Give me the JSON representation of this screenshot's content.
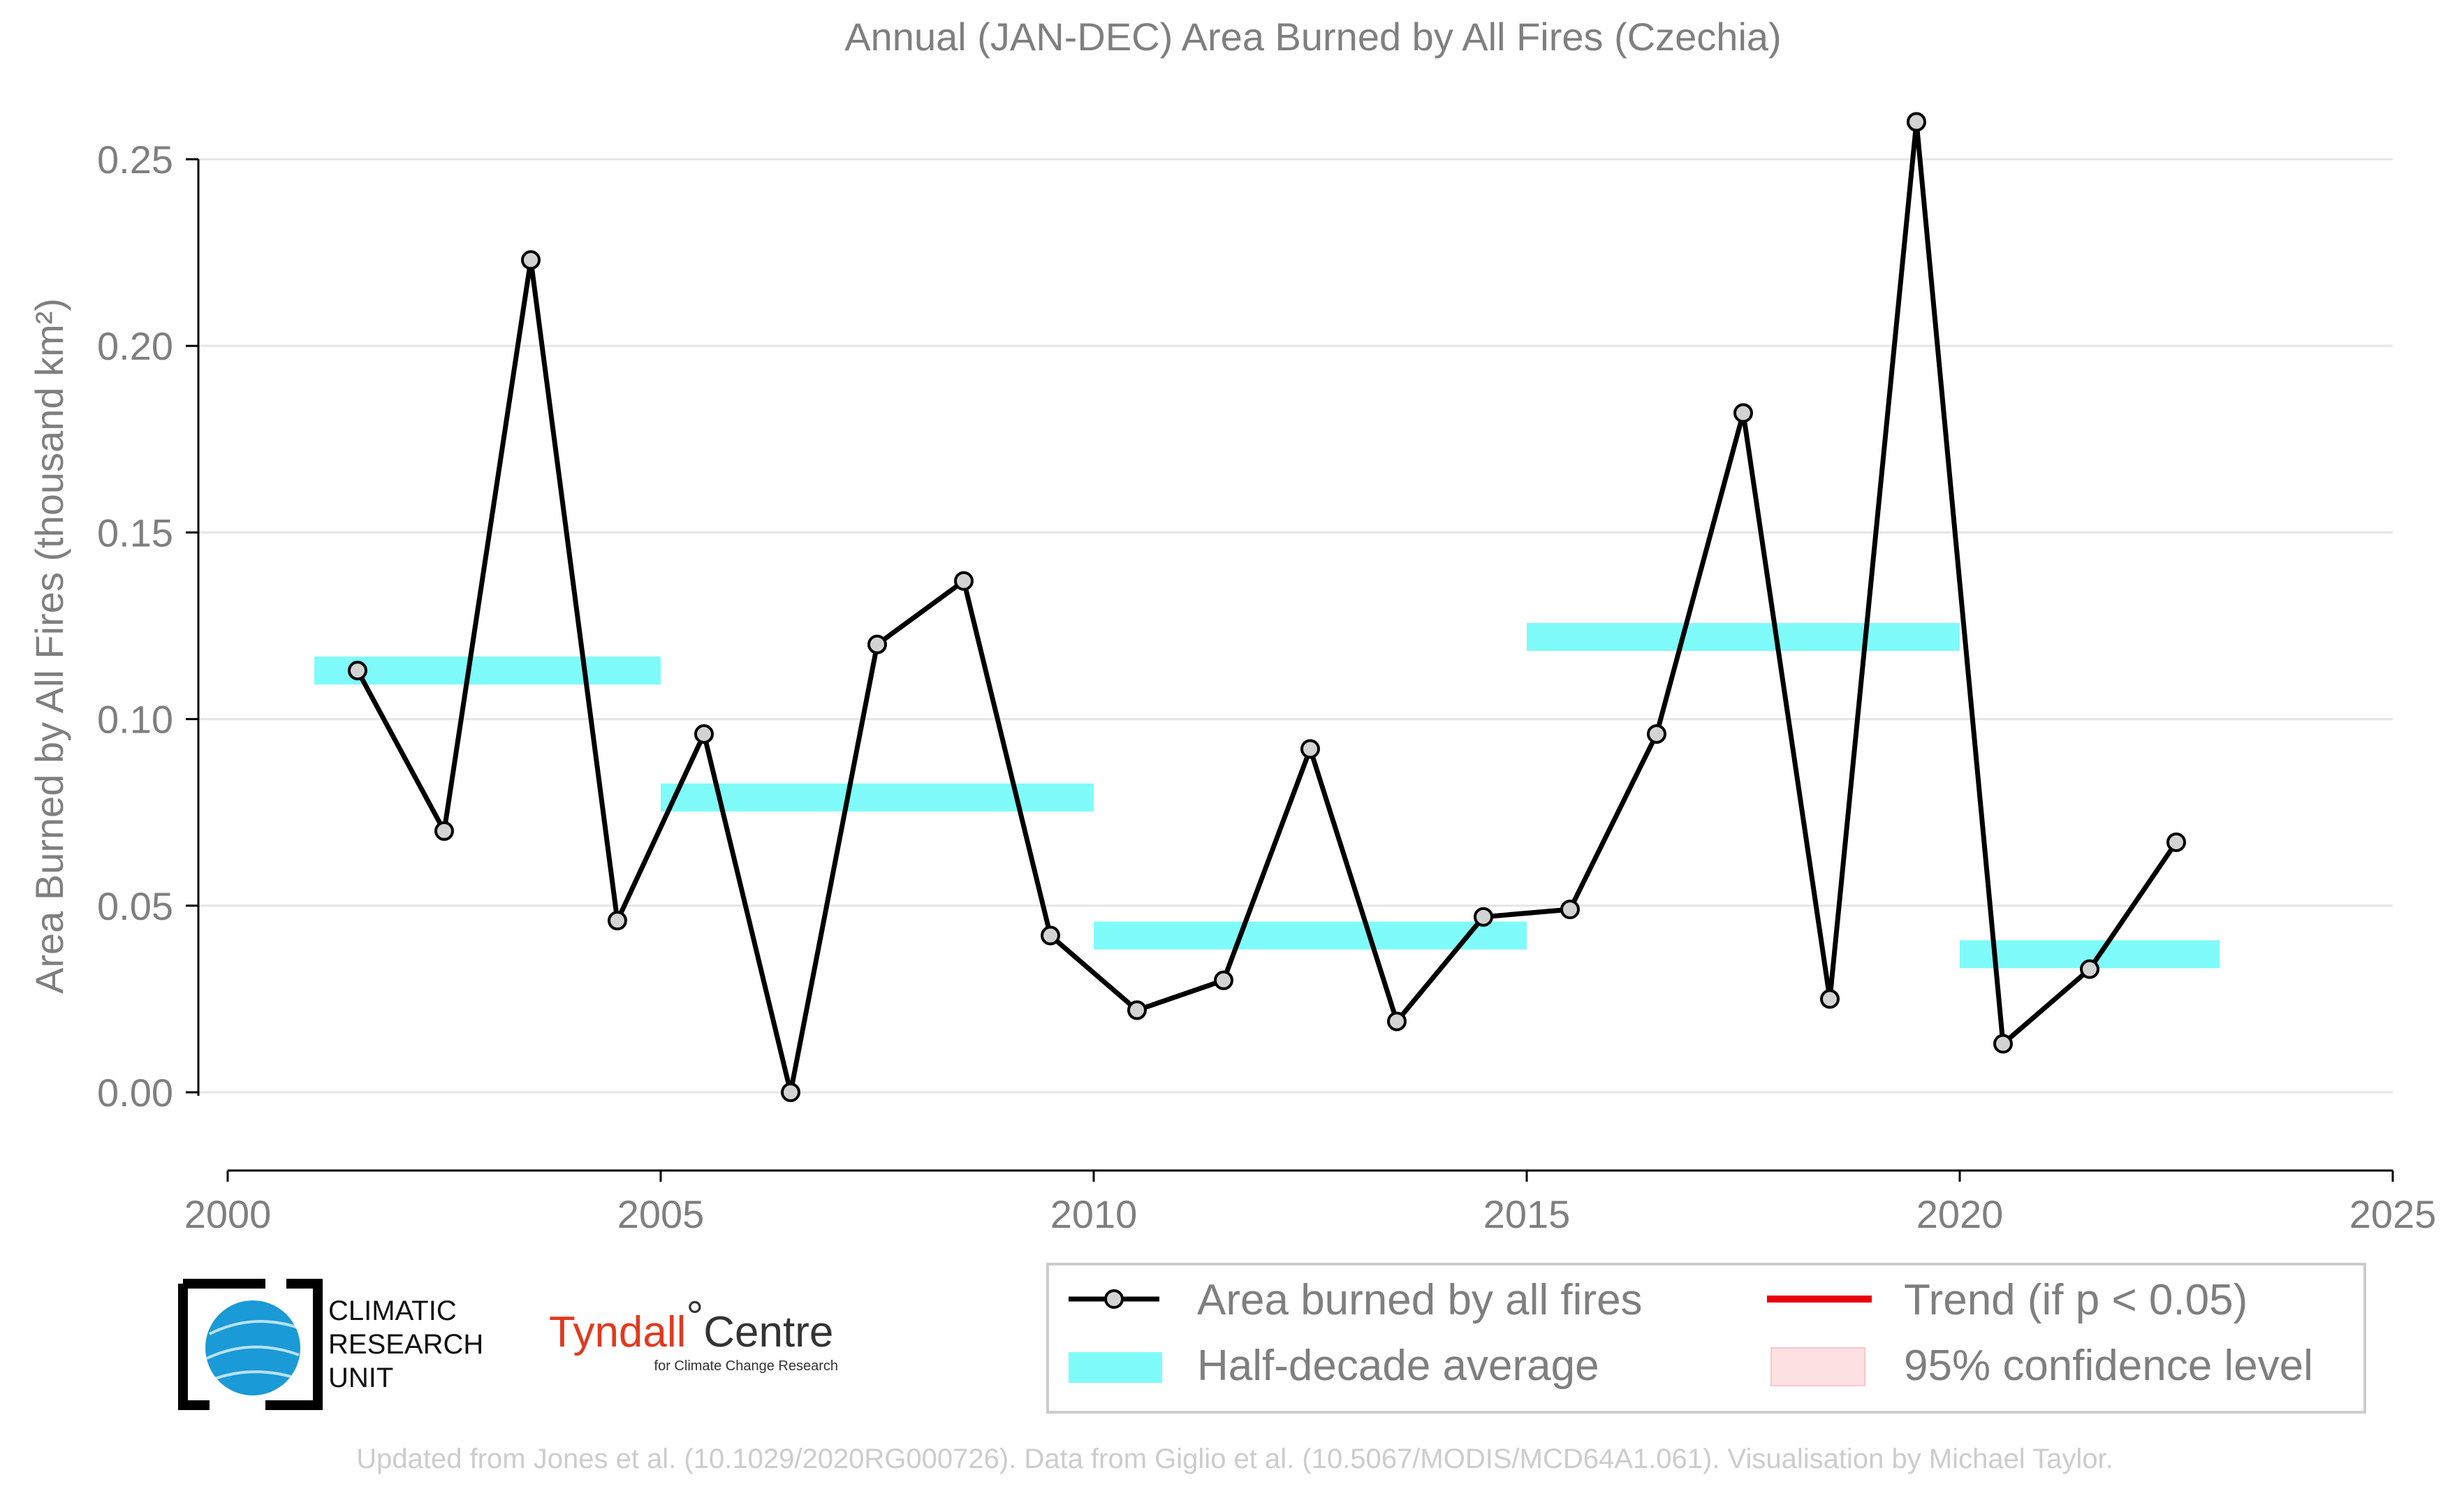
{
  "chart_data": {
    "type": "line",
    "title": "Annual (JAN-DEC) Area Burned by All Fires (Czechia)",
    "ylabel": "Area Burned by All Fires (thousand km²)",
    "xlabel": "",
    "xlim": [
      2000,
      2025
    ],
    "ylim": [
      -0.021,
      0.26
    ],
    "x_ticks": [
      2000,
      2005,
      2010,
      2015,
      2020,
      2025
    ],
    "y_ticks": [
      0.0,
      0.05,
      0.1,
      0.15,
      0.2,
      0.25
    ],
    "x_tick_labels": [
      "2000",
      "2005",
      "2010",
      "2015",
      "2020",
      "2025"
    ],
    "y_tick_labels": [
      "0.00",
      "0.05",
      "0.10",
      "0.15",
      "0.20",
      "0.25"
    ],
    "grid": "horizontal",
    "legend_position": "bottom-right",
    "series": [
      {
        "name": "Area burned by all fires",
        "color": "#000000",
        "x": [
          2001.5,
          2002.5,
          2003.5,
          2004.5,
          2005.5,
          2006.5,
          2007.5,
          2008.5,
          2009.5,
          2010.5,
          2011.5,
          2012.5,
          2013.5,
          2014.5,
          2015.5,
          2016.5,
          2017.5,
          2018.5,
          2019.5,
          2020.5,
          2021.5,
          2022.5
        ],
        "values": [
          0.113,
          0.07,
          0.223,
          0.046,
          0.096,
          0.0,
          0.12,
          0.137,
          0.042,
          0.022,
          0.03,
          0.092,
          0.019,
          0.047,
          0.049,
          0.096,
          0.182,
          0.025,
          0.26,
          0.013,
          0.033,
          0.067
        ]
      }
    ],
    "half_decade_average": {
      "name": "Half-decade average",
      "color": "#7ffbfa",
      "segments": [
        {
          "start": 2001,
          "end": 2005,
          "value": 0.113
        },
        {
          "start": 2005,
          "end": 2010,
          "value": 0.079
        },
        {
          "start": 2010,
          "end": 2015,
          "value": 0.042
        },
        {
          "start": 2015,
          "end": 2020,
          "value": 0.122
        },
        {
          "start": 2020,
          "end": 2023,
          "value": 0.037
        }
      ]
    },
    "legend": {
      "items": [
        {
          "label": "Area burned by all fires",
          "symbol": "line-marker",
          "color": "#000000"
        },
        {
          "label": "Trend (if p < 0.05)",
          "symbol": "line",
          "color": "#e8000b"
        },
        {
          "label": "Half-decade average",
          "symbol": "band",
          "color": "#7ffbfa"
        },
        {
          "label": "95% confidence level",
          "symbol": "patch",
          "color": "#fde0e2"
        }
      ]
    }
  },
  "logos": {
    "cru": [
      "CLIMATIC",
      "RESEARCH",
      "UNIT"
    ],
    "tyndall_main": "Tyndall",
    "tyndall_degree": "°",
    "tyndall_centre": "Centre",
    "tyndall_sub": "for Climate Change Research"
  },
  "footer": "Updated from Jones et al. (10.1029/2020RG000726). Data from Giglio et al. (10.5067/MODIS/MCD64A1.061). Visualisation by Michael Taylor."
}
